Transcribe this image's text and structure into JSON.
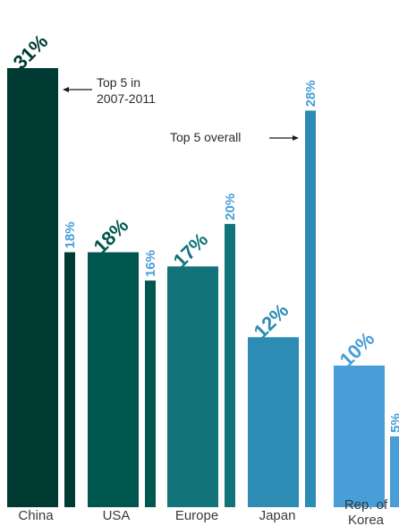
{
  "chart_data": {
    "type": "bar",
    "categories": [
      "China",
      "USA",
      "Europe",
      "Japan",
      "Rep. of Korea"
    ],
    "series": [
      {
        "values": [
          31,
          18,
          17,
          12,
          10
        ]
      },
      {
        "values": [
          18,
          16,
          20,
          28,
          5
        ]
      }
    ],
    "ylim": [
      0,
      35
    ],
    "colors": {
      "major": [
        "#003b33",
        "#00574f",
        "#13737b",
        "#2c8cb4",
        "#479ed9"
      ],
      "minor": [
        "#003b33",
        "#00574f",
        "#13737b",
        "#2c8cb4",
        "#479ed9"
      ],
      "label_minor": "#479ed9"
    },
    "annotations": [
      {
        "text_lines": [
          "Top 5 in",
          "2007-2011"
        ]
      },
      {
        "text_lines": [
          "Top 5 overall"
        ]
      }
    ],
    "value_suffix": "%"
  }
}
